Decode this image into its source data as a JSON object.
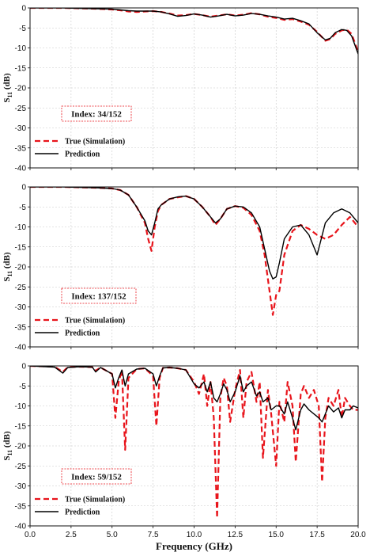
{
  "chart_data": [
    {
      "type": "line",
      "index_label": "Index: 34/152",
      "ylabel": "S11 (dB)",
      "xlabel": "",
      "xlim": [
        0,
        20
      ],
      "ylim": [
        -40,
        0
      ],
      "grid": true,
      "legend_position": "lower-left",
      "series": [
        {
          "name": "True (Simulation)",
          "color": "#e8141b",
          "style": "dashed",
          "x": [
            0,
            1,
            2,
            3,
            4,
            5,
            5.5,
            6,
            6.5,
            7,
            7.5,
            8,
            8.5,
            9,
            9.5,
            10,
            10.5,
            11,
            11.5,
            12,
            12.5,
            13,
            13.5,
            14,
            14.5,
            15,
            15.5,
            16,
            16.5,
            17,
            17.5,
            18,
            18.3,
            18.6,
            19,
            19.3,
            19.6,
            20
          ],
          "y": [
            0,
            0,
            0,
            -0.1,
            -0.2,
            -0.4,
            -0.6,
            -0.9,
            -1.0,
            -0.9,
            -0.8,
            -1.0,
            -1.4,
            -1.9,
            -1.8,
            -1.5,
            -1.8,
            -2.2,
            -1.9,
            -1.6,
            -1.9,
            -1.7,
            -1.3,
            -1.6,
            -2.2,
            -2.5,
            -3.0,
            -2.8,
            -3.4,
            -4.2,
            -6.0,
            -8.2,
            -7.8,
            -6.5,
            -5.6,
            -5.4,
            -6.5,
            -11.0
          ]
        },
        {
          "name": "Prediction",
          "color": "#000000",
          "style": "solid",
          "x": [
            0,
            1,
            2,
            3,
            4,
            5,
            5.5,
            6,
            6.5,
            7,
            7.5,
            8,
            8.5,
            9,
            9.5,
            10,
            10.5,
            11,
            11.5,
            12,
            12.5,
            13,
            13.5,
            14,
            14.5,
            15,
            15.5,
            16,
            16.5,
            17,
            17.5,
            18,
            18.3,
            18.6,
            19,
            19.3,
            19.6,
            20
          ],
          "y": [
            0,
            0,
            0,
            -0.1,
            -0.2,
            -0.3,
            -0.5,
            -0.7,
            -0.8,
            -0.8,
            -0.8,
            -1.0,
            -1.5,
            -2.1,
            -1.9,
            -1.5,
            -1.8,
            -2.3,
            -2.0,
            -1.6,
            -2.0,
            -1.8,
            -1.4,
            -1.6,
            -2.0,
            -2.3,
            -2.8,
            -2.6,
            -3.2,
            -4.0,
            -6.2,
            -8.0,
            -7.6,
            -6.2,
            -5.4,
            -5.6,
            -7.0,
            -11.5
          ]
        }
      ]
    },
    {
      "type": "line",
      "index_label": "Index: 137/152",
      "ylabel": "S11 (dB)",
      "xlabel": "",
      "xlim": [
        0,
        20
      ],
      "ylim": [
        -40,
        0
      ],
      "grid": true,
      "legend_position": "lower-left",
      "series": [
        {
          "name": "True (Simulation)",
          "color": "#e8141b",
          "style": "dashed",
          "x": [
            0,
            2,
            4,
            5,
            5.5,
            6,
            6.5,
            7,
            7.2,
            7.4,
            7.6,
            7.8,
            8,
            8.5,
            9,
            9.5,
            10,
            10.5,
            11,
            11.3,
            11.6,
            12,
            12.5,
            13,
            13.5,
            14,
            14.3,
            14.6,
            14.8,
            15,
            15.2,
            15.5,
            16,
            16.5,
            17,
            17.5,
            18,
            18.5,
            19,
            19.5,
            20
          ],
          "y": [
            0,
            0,
            -0.2,
            -0.4,
            -0.8,
            -2.0,
            -5.0,
            -9.0,
            -13.0,
            -16.0,
            -10.0,
            -6.0,
            -4.5,
            -3.0,
            -2.6,
            -2.3,
            -3.0,
            -5.0,
            -7.5,
            -9.5,
            -8.0,
            -5.5,
            -4.8,
            -5.2,
            -7.0,
            -11.0,
            -17.0,
            -26.0,
            -32.0,
            -27.0,
            -26.0,
            -17.0,
            -11.0,
            -9.5,
            -10.5,
            -12.0,
            -13.0,
            -12.0,
            -9.5,
            -7.5,
            -10.0
          ]
        },
        {
          "name": "Prediction",
          "color": "#000000",
          "style": "solid",
          "x": [
            0,
            2,
            4,
            5,
            5.5,
            6,
            6.5,
            7,
            7.2,
            7.4,
            7.6,
            7.8,
            8,
            8.5,
            9,
            9.5,
            10,
            10.5,
            11,
            11.3,
            11.6,
            12,
            12.5,
            13,
            13.5,
            14,
            14.3,
            14.6,
            14.8,
            15,
            15.2,
            15.5,
            16,
            16.5,
            17,
            17.5,
            18,
            18.5,
            19,
            19.5,
            20
          ],
          "y": [
            0,
            0,
            -0.2,
            -0.4,
            -0.8,
            -2.0,
            -5.0,
            -8.5,
            -11.0,
            -12.0,
            -9.0,
            -5.5,
            -4.5,
            -3.0,
            -2.5,
            -2.3,
            -3.0,
            -5.0,
            -7.5,
            -9.0,
            -8.0,
            -5.5,
            -4.8,
            -5.0,
            -6.5,
            -10.0,
            -15.5,
            -21.0,
            -23.0,
            -22.5,
            -19.0,
            -13.0,
            -10.0,
            -9.5,
            -12.0,
            -17.0,
            -9.0,
            -6.5,
            -5.5,
            -6.5,
            -9.0
          ]
        }
      ]
    },
    {
      "type": "line",
      "index_label": "Index: 59/152",
      "ylabel": "S11 (dB)",
      "xlabel": "Frequency (GHz)",
      "xlim": [
        0,
        20
      ],
      "ylim": [
        -40,
        0
      ],
      "xticks": [
        "0.0",
        "2.5",
        "5.0",
        "7.5",
        "10.0",
        "12.5",
        "15.0",
        "17.5",
        "20.0"
      ],
      "grid": true,
      "legend_position": "lower-left",
      "series": [
        {
          "name": "True (Simulation)",
          "color": "#e8141b",
          "style": "dashed",
          "x": [
            0,
            1.5,
            2.0,
            2.3,
            3,
            3.8,
            4.0,
            4.3,
            5.0,
            5.2,
            5.4,
            5.6,
            5.8,
            6.0,
            6.5,
            7.0,
            7.5,
            7.7,
            7.9,
            8.1,
            8.5,
            9.0,
            9.5,
            10.0,
            10.3,
            10.6,
            10.8,
            11.0,
            11.2,
            11.4,
            11.6,
            11.8,
            12.0,
            12.2,
            12.5,
            12.8,
            13.0,
            13.2,
            13.5,
            13.8,
            14.0,
            14.2,
            14.5,
            14.7,
            15.0,
            15.2,
            15.5,
            15.7,
            16.0,
            16.2,
            16.5,
            16.7,
            17.0,
            17.3,
            17.6,
            17.8,
            18.0,
            18.2,
            18.5,
            18.8,
            19.0,
            19.2,
            19.5,
            19.7,
            20.0
          ],
          "y": [
            0,
            -0.2,
            -1.5,
            -0.3,
            -0.2,
            -0.3,
            -1.2,
            -0.4,
            -2.0,
            -13.0,
            -4.0,
            -1.0,
            -21.0,
            -3.0,
            -0.8,
            -0.6,
            -2.5,
            -15.0,
            -3.0,
            -0.5,
            -0.4,
            -0.6,
            -1.0,
            -4.0,
            -7.0,
            -2.0,
            -10.0,
            -4.0,
            -13.0,
            -38.0,
            -8.0,
            -3.0,
            -5.0,
            -14.0,
            -6.0,
            -1.0,
            -13.0,
            -4.0,
            -1.5,
            -9.0,
            -4.0,
            -23.0,
            -6.0,
            -12.0,
            -25.0,
            -9.0,
            -14.0,
            -4.0,
            -10.0,
            -24.0,
            -7.0,
            -5.0,
            -8.0,
            -6.0,
            -10.0,
            -29.0,
            -13.0,
            -8.0,
            -10.0,
            -6.0,
            -13.0,
            -8.0,
            -10.0,
            -11.0,
            -11.0
          ]
        },
        {
          "name": "Prediction",
          "color": "#000000",
          "style": "solid",
          "x": [
            0,
            1.5,
            2.0,
            2.3,
            3,
            3.8,
            4.0,
            4.3,
            5.0,
            5.2,
            5.4,
            5.6,
            5.8,
            6.0,
            6.5,
            7.0,
            7.5,
            7.7,
            7.9,
            8.1,
            8.5,
            9.0,
            9.5,
            10.0,
            10.3,
            10.6,
            10.8,
            11.0,
            11.2,
            11.4,
            11.6,
            11.8,
            12.0,
            12.2,
            12.5,
            12.8,
            13.0,
            13.2,
            13.5,
            13.8,
            14.0,
            14.2,
            14.5,
            14.7,
            15.0,
            15.2,
            15.5,
            15.7,
            16.0,
            16.2,
            16.5,
            16.7,
            17.0,
            17.3,
            17.6,
            17.8,
            18.0,
            18.2,
            18.5,
            18.8,
            19.0,
            19.2,
            19.5,
            19.7,
            20.0
          ],
          "y": [
            0,
            -0.3,
            -1.8,
            -0.4,
            -0.2,
            -0.3,
            -1.5,
            -0.4,
            -2.0,
            -5.5,
            -3.0,
            -1.0,
            -5.0,
            -2.0,
            -0.8,
            -0.6,
            -2.0,
            -5.0,
            -2.5,
            -0.5,
            -0.4,
            -0.6,
            -1.0,
            -4.5,
            -5.5,
            -4.0,
            -6.5,
            -4.0,
            -8.0,
            -9.0,
            -7.0,
            -4.5,
            -6.0,
            -9.0,
            -6.5,
            -2.5,
            -6.5,
            -5.0,
            -4.0,
            -7.5,
            -6.5,
            -9.0,
            -8.0,
            -11.0,
            -10.0,
            -10.0,
            -12.0,
            -9.0,
            -13.0,
            -16.0,
            -11.0,
            -9.5,
            -11.0,
            -12.0,
            -13.0,
            -14.0,
            -12.0,
            -10.0,
            -11.5,
            -10.5,
            -13.0,
            -11.0,
            -11.0,
            -10.0,
            -10.5
          ]
        }
      ]
    }
  ]
}
